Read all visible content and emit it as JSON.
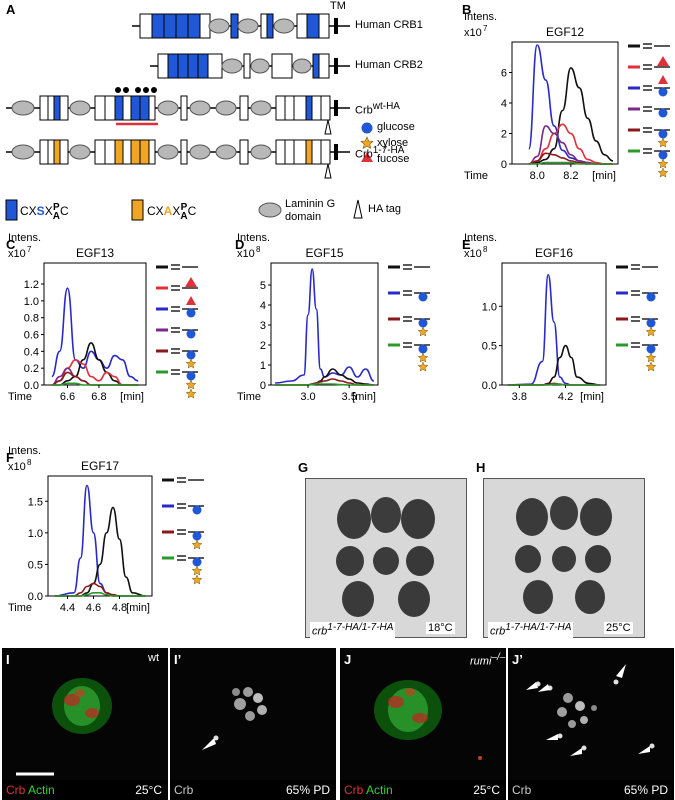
{
  "panel_letters": {
    "A": "A",
    "B": "B",
    "C": "C",
    "D": "D",
    "E": "E",
    "F": "F",
    "G": "G",
    "H": "H",
    "I": "I",
    "Ip": "I’",
    "J": "J",
    "Jp": "J’"
  },
  "panelA": {
    "tm": "TM",
    "human_crb1": "Human CRB1",
    "human_crb2": "Human CRB2",
    "crb_wt": "Crb",
    "crb_wt_sup": "wt-HA",
    "crb_mut": "Crb",
    "crb_mut_sup": "1-7-HA",
    "legend_glucose": "glucose",
    "legend_xylose": "xylose",
    "legend_fucose": "fucose",
    "motif1_pre": "CX",
    "motif1_mid": "S",
    "motif1_x": "X",
    "motif1_p": "P",
    "motif1_a": "A",
    "motif1_c": "C",
    "motif2_pre": "CX",
    "motif2_mid": "A",
    "motif2_x": "X",
    "motif2_p": "P",
    "motif2_a": "A",
    "motif2_c": "C",
    "laminin1": "Laminin G",
    "laminin2": "domain",
    "hatag": "HA tag",
    "colors": {
      "blue": "#1f57d6",
      "orange": "#f0a623",
      "grey": "#b8b8b8",
      "red": "#e0303a"
    }
  },
  "chart_data": [
    {
      "panel": "B",
      "type": "line",
      "title": "EGF12",
      "ylabel": "Intens.",
      "yexp": "x10",
      "yexp_sup": "7",
      "xlabel": "Time",
      "xunit": "[min]",
      "x": [
        7.95,
        8.0,
        8.05,
        8.1,
        8.15,
        8.2,
        8.25,
        8.3,
        8.35,
        8.4,
        8.45
      ],
      "xlim": [
        7.85,
        8.48
      ],
      "ylim": [
        0,
        8
      ],
      "xticks": [
        8.0,
        8.2
      ],
      "yticks": [
        0,
        2,
        4,
        6
      ],
      "series": [
        {
          "color": "#111111",
          "values": [
            0,
            0.1,
            0.3,
            1.0,
            3.5,
            6.3,
            5.0,
            3.0,
            1.5,
            0.6,
            0.2
          ]
        },
        {
          "color": "#2a2ac8",
          "values": [
            1.0,
            7.8,
            5.5,
            2.5,
            0.9,
            0.4,
            0.2,
            0.1,
            0,
            0,
            0
          ]
        },
        {
          "color": "#e2303a",
          "values": [
            0,
            0.2,
            1.0,
            2.0,
            2.6,
            2.0,
            1.0,
            0.3,
            0.1,
            0,
            0
          ]
        },
        {
          "color": "#7a2a8a",
          "values": [
            0,
            0.5,
            2.5,
            2.0,
            1.4,
            0.6,
            0.2,
            0.1,
            0,
            0,
            0
          ]
        },
        {
          "color": "#8a1a1a",
          "values": [
            0,
            0.2,
            0.7,
            0.6,
            0.4,
            0.2,
            0.1,
            0,
            0,
            0,
            0
          ]
        },
        {
          "color": "#2a9a2a",
          "values": [
            0,
            0,
            0.1,
            0.1,
            0.1,
            0.1,
            0,
            0,
            0,
            0,
            0
          ]
        }
      ]
    },
    {
      "panel": "C",
      "type": "line",
      "title": "EGF13",
      "ylabel": "Intens.",
      "yexp": "x10",
      "yexp_sup": "7",
      "xlabel": "Time",
      "xunit": "[min]",
      "x": [
        6.5,
        6.55,
        6.6,
        6.65,
        6.7,
        6.75,
        6.8,
        6.85,
        6.9,
        6.95,
        7.0,
        7.05
      ],
      "xlim": [
        6.45,
        7.1
      ],
      "ylim": [
        0,
        1.45
      ],
      "xticks": [
        6.6,
        6.8
      ],
      "yticks": [
        0,
        0.2,
        0.4,
        0.6,
        0.8,
        1.0,
        1.2
      ],
      "series": [
        {
          "color": "#2a2ac8",
          "values": [
            0.1,
            0.4,
            1.15,
            0.3,
            0.2,
            0.4,
            0.3,
            0.2,
            0.35,
            0.3,
            0.1,
            0.05
          ]
        },
        {
          "color": "#111111",
          "values": [
            0,
            0,
            0.05,
            0.1,
            0.3,
            0.5,
            0.3,
            0.15,
            0.05,
            0,
            0,
            0
          ]
        },
        {
          "color": "#e2303a",
          "values": [
            0,
            0.05,
            0.2,
            0.3,
            0.25,
            0.1,
            0.05,
            0.15,
            0.1,
            0,
            0,
            0
          ]
        },
        {
          "color": "#7a2a8a",
          "values": [
            0,
            0.1,
            0.2,
            0.1,
            0.05,
            0,
            0,
            0,
            0,
            0,
            0,
            0
          ]
        },
        {
          "color": "#8a1a1a",
          "values": [
            0,
            0.05,
            0.15,
            0.1,
            0.05,
            0,
            0,
            0,
            0,
            0,
            0,
            0
          ]
        },
        {
          "color": "#2a9a2a",
          "values": [
            0,
            0,
            0.02,
            0.02,
            0,
            0,
            0,
            0,
            0,
            0,
            0,
            0
          ]
        }
      ]
    },
    {
      "panel": "D",
      "type": "line",
      "title": "EGF15",
      "ylabel": "Intens.",
      "yexp": "x10",
      "yexp_sup": "8",
      "xlabel": "Time",
      "xunit": "[min]",
      "x": [
        2.6,
        2.8,
        2.95,
        3.0,
        3.05,
        3.1,
        3.15,
        3.2,
        3.3,
        3.4,
        3.5,
        3.6,
        3.7,
        3.8
      ],
      "xlim": [
        2.55,
        3.85
      ],
      "ylim": [
        0,
        6.1
      ],
      "xticks": [
        3.0,
        3.5
      ],
      "yticks": [
        0,
        1,
        2,
        3,
        4,
        5
      ],
      "series": [
        {
          "color": "#2a2ac8",
          "values": [
            0.1,
            0.2,
            0.5,
            3.5,
            5.8,
            3.8,
            0.8,
            0.4,
            0.6,
            0.5,
            0.9,
            0.4,
            0.8,
            0.2
          ]
        },
        {
          "color": "#111111",
          "values": [
            0,
            0,
            0,
            0,
            0.05,
            0.1,
            0.2,
            0.4,
            0.8,
            0.5,
            0.3,
            0.1,
            0.05,
            0
          ]
        },
        {
          "color": "#8a1a1a",
          "values": [
            0,
            0,
            0,
            0,
            0.05,
            0.1,
            0.15,
            0.2,
            0.3,
            0.2,
            0.1,
            0,
            0,
            0
          ]
        },
        {
          "color": "#2a9a2a",
          "values": [
            0,
            0,
            0,
            0,
            0.02,
            0.05,
            0.05,
            0.05,
            0.05,
            0.02,
            0,
            0,
            0,
            0
          ]
        }
      ]
    },
    {
      "panel": "E",
      "type": "line",
      "title": "EGF16",
      "ylabel": "Intens.",
      "yexp": "x10",
      "yexp_sup": "8",
      "xlabel": "",
      "xunit": "[min]",
      "x": [
        3.7,
        3.9,
        4.0,
        4.05,
        4.1,
        4.15,
        4.2,
        4.25,
        4.3,
        4.4,
        4.5
      ],
      "xlim": [
        3.65,
        4.55
      ],
      "ylim": [
        0,
        1.55
      ],
      "xticks": [
        3.8,
        4.2
      ],
      "yticks": [
        0,
        0.5,
        1.0
      ],
      "series": [
        {
          "color": "#2a2ac8",
          "values": [
            0,
            0.01,
            0.3,
            1.4,
            0.8,
            0.1,
            0.02,
            0,
            0,
            0,
            0
          ]
        },
        {
          "color": "#111111",
          "values": [
            0,
            0,
            0,
            0.02,
            0.1,
            0.35,
            0.5,
            0.35,
            0.1,
            0.02,
            0
          ]
        },
        {
          "color": "#8a1a1a",
          "values": [
            0,
            0,
            0,
            0.01,
            0.02,
            0.01,
            0,
            0,
            0,
            0,
            0
          ]
        },
        {
          "color": "#2a9a2a",
          "values": [
            0,
            0,
            0,
            0,
            0.01,
            0.01,
            0,
            0,
            0,
            0,
            0
          ]
        }
      ]
    },
    {
      "panel": "F",
      "type": "line",
      "title": "EGF17",
      "ylabel": "Intens.",
      "yexp": "x10",
      "yexp_sup": "8",
      "xlabel": "Time",
      "xunit": "[min]",
      "x": [
        4.3,
        4.45,
        4.5,
        4.55,
        4.6,
        4.65,
        4.7,
        4.75,
        4.8,
        4.85,
        4.9,
        5.0
      ],
      "xlim": [
        4.25,
        5.05
      ],
      "ylim": [
        0,
        1.9
      ],
      "xticks": [
        4.4,
        4.6,
        4.8
      ],
      "yticks": [
        0,
        0.5,
        1.0,
        1.5
      ],
      "series": [
        {
          "color": "#2a2ac8",
          "values": [
            0,
            0.05,
            0.6,
            1.75,
            1.0,
            0.2,
            0.05,
            0,
            0,
            0,
            0,
            0
          ]
        },
        {
          "color": "#111111",
          "values": [
            0,
            0,
            0,
            0.05,
            0.2,
            0.5,
            1.0,
            1.4,
            0.9,
            0.3,
            0.05,
            0
          ]
        },
        {
          "color": "#8a1a1a",
          "values": [
            0,
            0,
            0.05,
            0.15,
            0.2,
            0.15,
            0.05,
            0.02,
            0,
            0,
            0,
            0
          ]
        },
        {
          "color": "#2a9a2a",
          "values": [
            0,
            0,
            0,
            0.02,
            0.05,
            0.05,
            0.02,
            0,
            0,
            0,
            0,
            0
          ]
        }
      ]
    }
  ],
  "panelG": {
    "genotype": "crb",
    "genotype_sup": "1-7-HA/1-7-HA",
    "temp": "18°C"
  },
  "panelH": {
    "genotype": "crb",
    "genotype_sup": "1-7-HA/1-7-HA",
    "temp": "25°C"
  },
  "panelI": {
    "corner": "wt",
    "crb": "Crb",
    "actin": "Actin",
    "temp": "25°C"
  },
  "panelIp": {
    "crb": "Crb",
    "pd": "65% PD"
  },
  "panelJ": {
    "corner": "rumi",
    "corner_sup": "–/–",
    "crb": "Crb",
    "actin": "Actin",
    "temp": "25°C"
  },
  "panelJp": {
    "crb": "Crb",
    "pd": "65% PD"
  }
}
